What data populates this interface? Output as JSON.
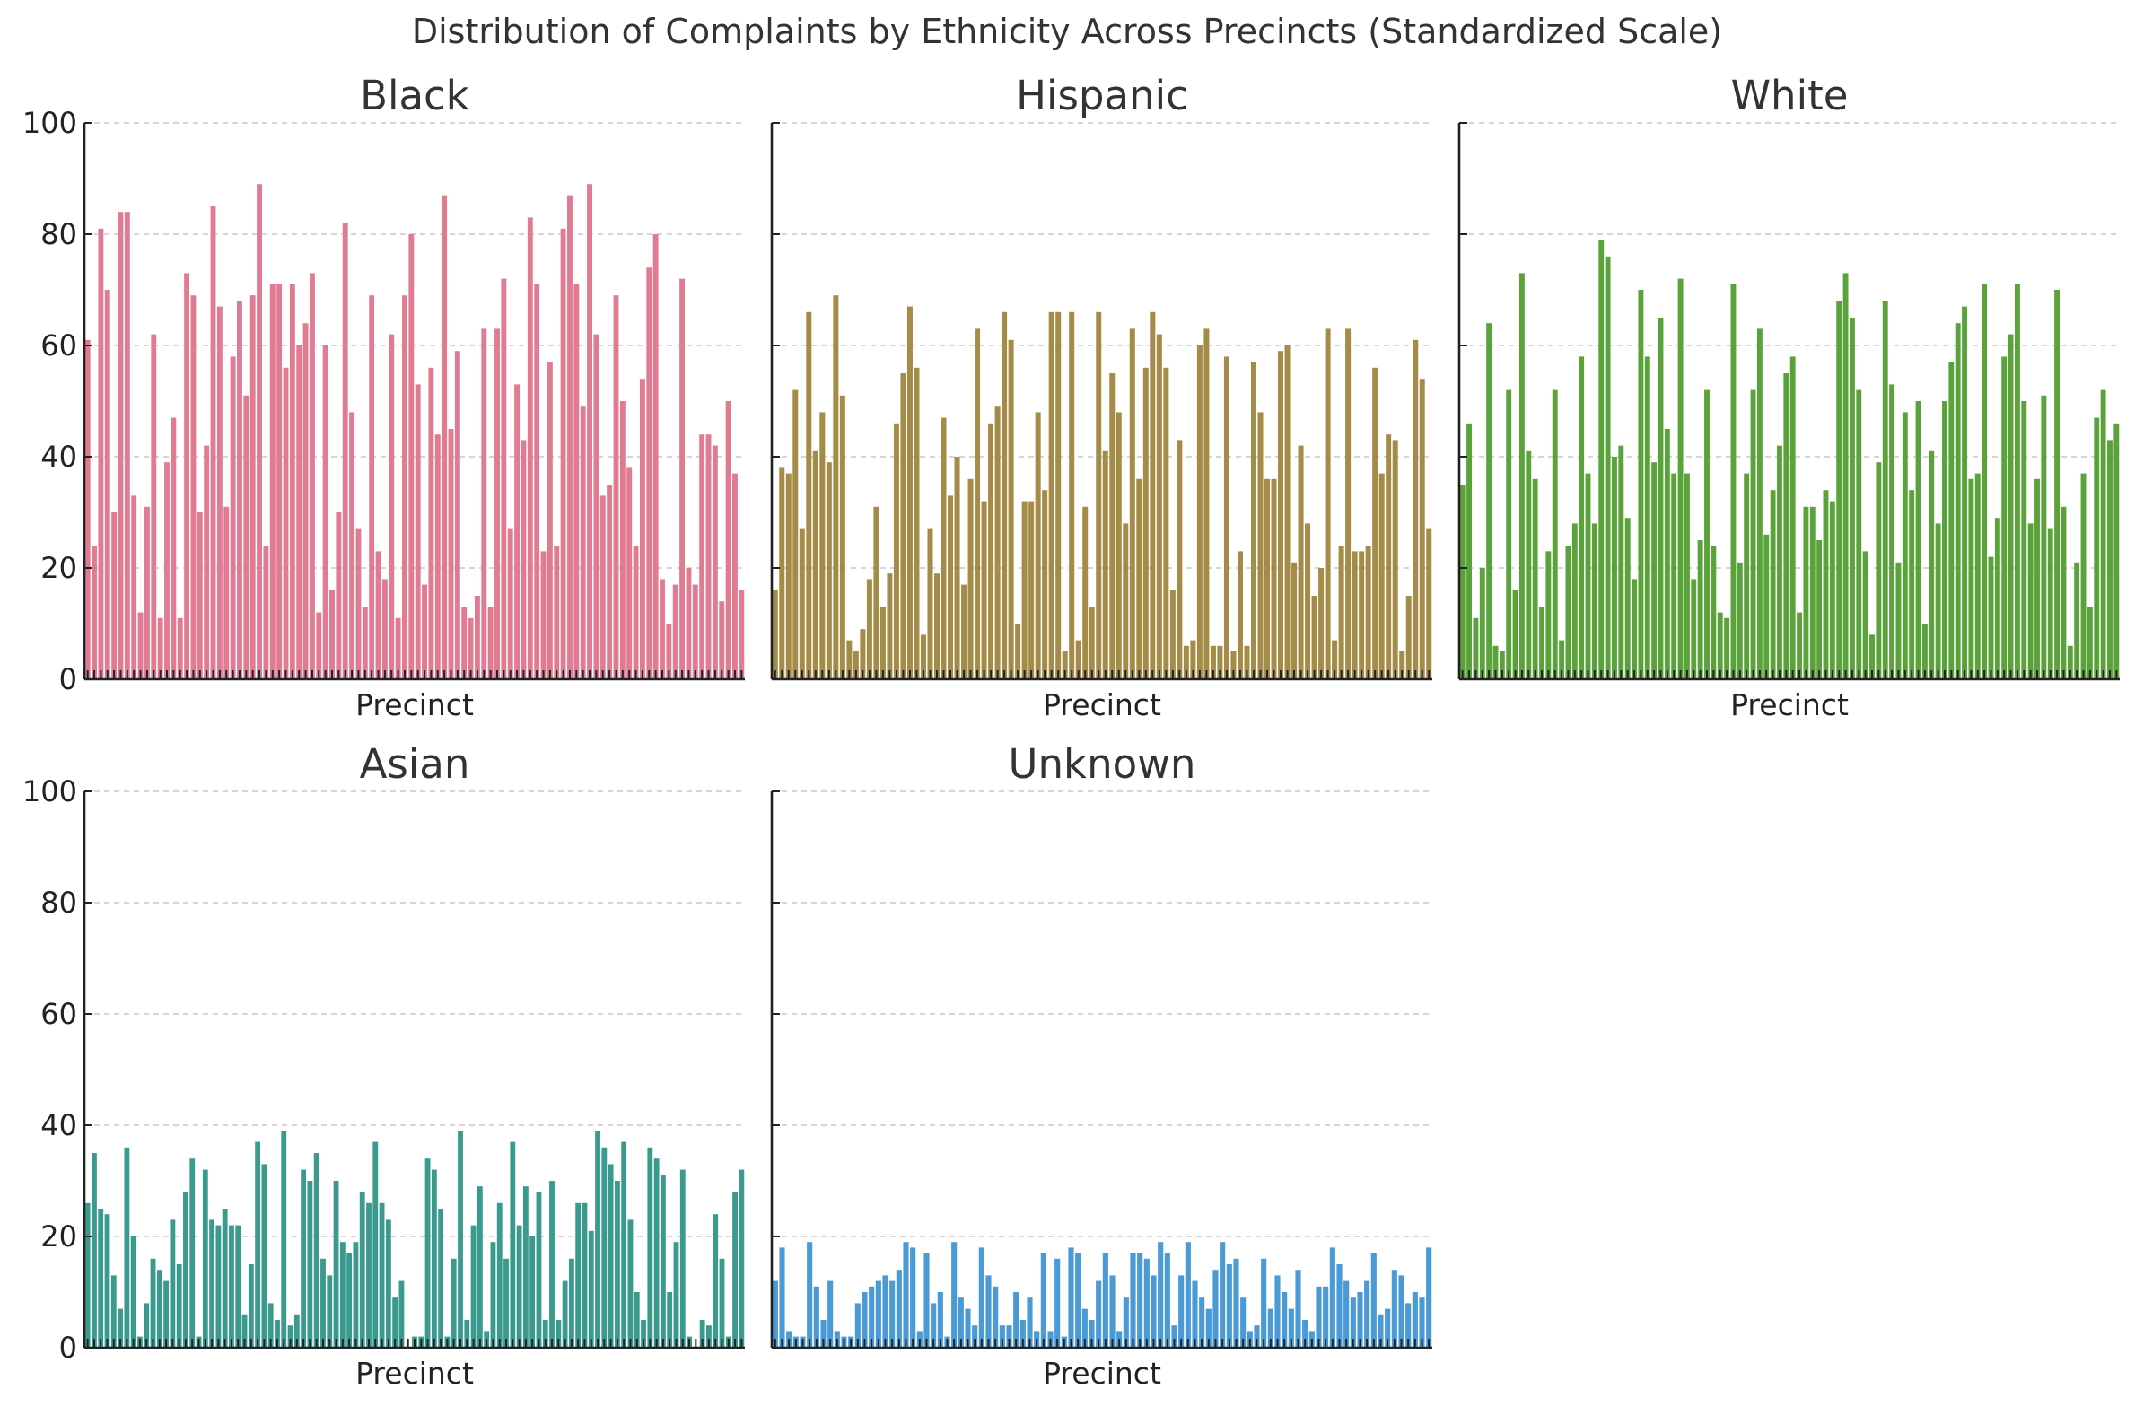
{
  "chart_data": {
    "type": "bar",
    "title": "Distribution of Complaints by Ethnicity Across Precincts (Standardized Scale)",
    "ylim": [
      0,
      100
    ],
    "yticks": [
      0,
      20,
      40,
      60,
      80,
      100
    ],
    "grid": "y-dashed",
    "panels": [
      {
        "title": "Black",
        "xlabel": "Precinct",
        "color": "#e07b91",
        "values": [
          61,
          24,
          81,
          70,
          30,
          84,
          84,
          33,
          12,
          31,
          62,
          11,
          39,
          47,
          11,
          73,
          69,
          30,
          42,
          85,
          67,
          31,
          58,
          68,
          51,
          69,
          89,
          24,
          71,
          71,
          56,
          71,
          60,
          64,
          73,
          12,
          60,
          16,
          30,
          82,
          48,
          27,
          13,
          69,
          23,
          18,
          62,
          11,
          69,
          80,
          53,
          17,
          56,
          44,
          87,
          45,
          59,
          13,
          11,
          15,
          63,
          13,
          63,
          72,
          27,
          53,
          43,
          83,
          71,
          23,
          57,
          24,
          81,
          87,
          71,
          49,
          89,
          62,
          33,
          35,
          69,
          50,
          38,
          24,
          54,
          74,
          80,
          18,
          10,
          17,
          72,
          20,
          17,
          44,
          44,
          42,
          14,
          50,
          37,
          16
        ]
      },
      {
        "title": "Hispanic",
        "xlabel": "Precinct",
        "color": "#a48c48",
        "values": [
          16,
          38,
          37,
          52,
          27,
          66,
          41,
          48,
          39,
          69,
          51,
          7,
          5,
          9,
          18,
          31,
          13,
          19,
          46,
          55,
          67,
          56,
          8,
          27,
          19,
          47,
          33,
          40,
          17,
          36,
          63,
          32,
          46,
          49,
          66,
          61,
          10,
          32,
          32,
          48,
          34,
          66,
          66,
          5,
          66,
          7,
          31,
          13,
          66,
          41,
          55,
          48,
          28,
          63,
          36,
          56,
          66,
          62,
          56,
          16,
          43,
          6,
          7,
          60,
          63,
          6,
          6,
          58,
          5,
          23,
          6,
          57,
          48,
          36,
          36,
          59,
          60,
          21,
          42,
          28,
          15,
          20,
          63,
          7,
          24,
          63,
          23,
          23,
          24,
          56,
          37,
          44,
          43,
          5,
          15,
          61,
          54,
          27
        ]
      },
      {
        "title": "White",
        "xlabel": "Precinct",
        "color": "#5aa23a",
        "values": [
          35,
          46,
          11,
          20,
          64,
          6,
          5,
          52,
          16,
          73,
          41,
          36,
          13,
          23,
          52,
          7,
          24,
          28,
          58,
          37,
          28,
          79,
          76,
          40,
          42,
          29,
          18,
          70,
          58,
          39,
          65,
          45,
          37,
          72,
          37,
          18,
          25,
          52,
          24,
          12,
          11,
          71,
          21,
          37,
          52,
          63,
          26,
          34,
          42,
          55,
          58,
          12,
          31,
          31,
          25,
          34,
          32,
          68,
          73,
          65,
          52,
          23,
          8,
          39,
          68,
          53,
          21,
          48,
          34,
          50,
          10,
          41,
          28,
          50,
          57,
          64,
          67,
          36,
          37,
          71,
          22,
          29,
          58,
          62,
          71,
          50,
          28,
          36,
          51,
          27,
          70,
          31,
          6,
          21,
          37,
          13,
          47,
          52,
          43,
          46
        ]
      },
      {
        "title": "Asian",
        "xlabel": "Precinct",
        "color": "#3a9a8e",
        "values": [
          26,
          35,
          25,
          24,
          13,
          7,
          36,
          20,
          2,
          8,
          16,
          14,
          12,
          23,
          15,
          28,
          34,
          2,
          32,
          23,
          22,
          25,
          22,
          22,
          6,
          15,
          37,
          33,
          8,
          5,
          39,
          4,
          6,
          32,
          30,
          35,
          16,
          13,
          30,
          19,
          17,
          19,
          28,
          26,
          37,
          26,
          23,
          9,
          12,
          0,
          2,
          2,
          34,
          32,
          25,
          2,
          16,
          39,
          5,
          22,
          29,
          3,
          19,
          26,
          16,
          37,
          22,
          29,
          20,
          28,
          5,
          30,
          5,
          12,
          16,
          26,
          26,
          21,
          39,
          36,
          33,
          30,
          37,
          23,
          10,
          5,
          36,
          34,
          31,
          10,
          19,
          32,
          2,
          0,
          5,
          4,
          24,
          16,
          2,
          28,
          32
        ]
      },
      {
        "title": "Unknown",
        "xlabel": "Precinct",
        "color": "#4a9ad6",
        "values": [
          12,
          18,
          3,
          2,
          2,
          19,
          11,
          5,
          12,
          3,
          2,
          2,
          8,
          10,
          11,
          12,
          13,
          12,
          14,
          19,
          18,
          3,
          17,
          8,
          10,
          2,
          19,
          9,
          7,
          4,
          18,
          13,
          11,
          4,
          4,
          10,
          5,
          9,
          3,
          17,
          3,
          16,
          2,
          18,
          17,
          7,
          5,
          12,
          17,
          13,
          3,
          9,
          17,
          17,
          16,
          13,
          19,
          17,
          4,
          13,
          19,
          12,
          9,
          7,
          14,
          19,
          15,
          16,
          9,
          3,
          4,
          16,
          7,
          13,
          10,
          7,
          14,
          5,
          3,
          11,
          11,
          18,
          15,
          12,
          9,
          10,
          12,
          17,
          6,
          7,
          14,
          13,
          8,
          10,
          9,
          18
        ]
      }
    ]
  }
}
